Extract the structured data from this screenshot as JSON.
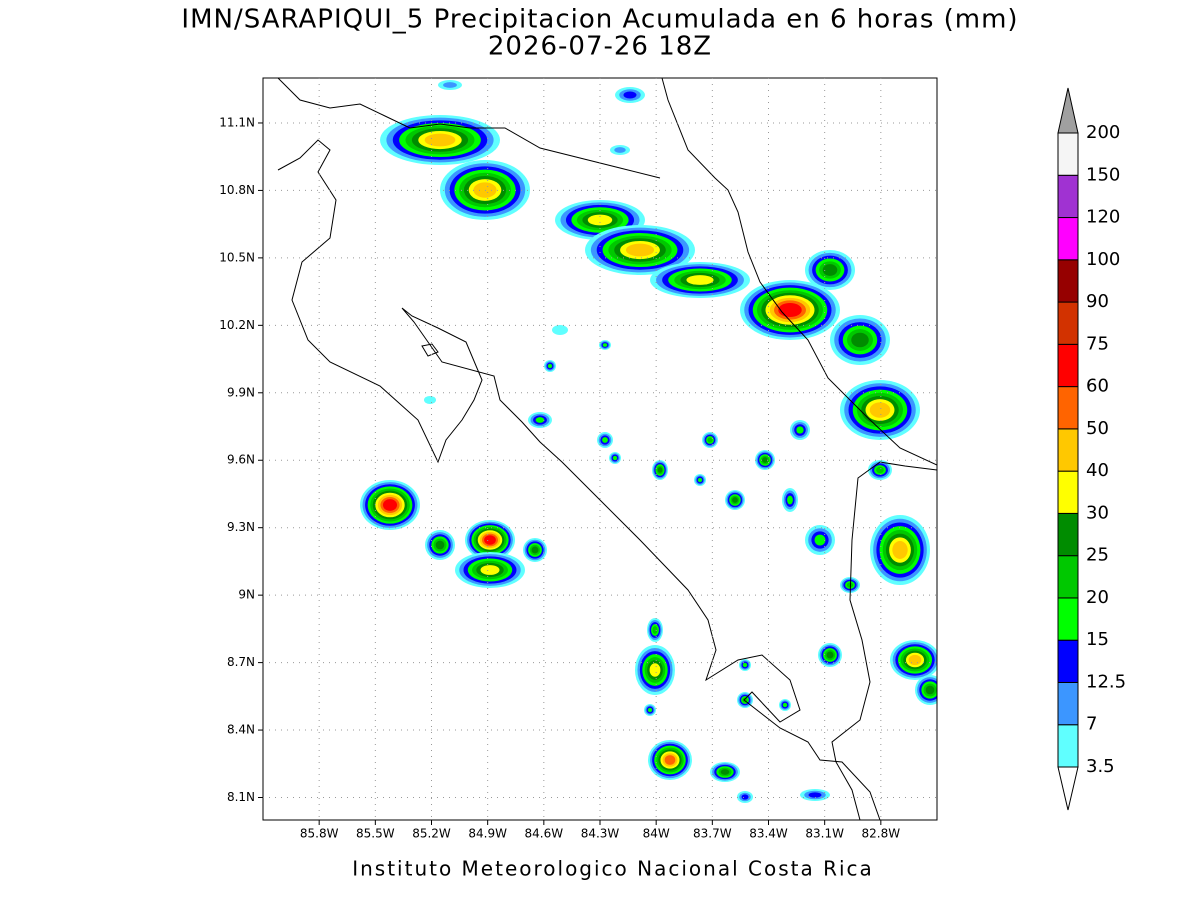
{
  "map": {
    "title": "IMN/SARAPIQUI_5 Precipitacion Acumulada en 6 horas (mm)",
    "subtitle": "2026-07-26 18Z",
    "footer": "Instituto Meteorologico Nacional Costa Rica",
    "xlim": [
      -86.1,
      -82.5
    ],
    "ylim": [
      8.0,
      11.3
    ],
    "xticks": [
      {
        "value": -85.8,
        "label": "85.8W"
      },
      {
        "value": -85.5,
        "label": "85.5W"
      },
      {
        "value": -85.2,
        "label": "85.2W"
      },
      {
        "value": -84.9,
        "label": "84.9W"
      },
      {
        "value": -84.6,
        "label": "84.6W"
      },
      {
        "value": -84.3,
        "label": "84.3W"
      },
      {
        "value": -84,
        "label": "84W"
      },
      {
        "value": -83.7,
        "label": "83.7W"
      },
      {
        "value": -83.4,
        "label": "83.4W"
      },
      {
        "value": -83.1,
        "label": "83.1W"
      },
      {
        "value": -82.8,
        "label": "82.8W"
      }
    ],
    "yticks": [
      {
        "value": 8.1,
        "label": "8.1N"
      },
      {
        "value": 8.4,
        "label": "8.4N"
      },
      {
        "value": 8.7,
        "label": "8.7N"
      },
      {
        "value": 9,
        "label": "9N"
      },
      {
        "value": 9.3,
        "label": "9.3N"
      },
      {
        "value": 9.6,
        "label": "9.6N"
      },
      {
        "value": 9.9,
        "label": "9.9N"
      },
      {
        "value": 10.2,
        "label": "10.2N"
      },
      {
        "value": 10.5,
        "label": "10.5N"
      },
      {
        "value": 10.8,
        "label": "10.8N"
      },
      {
        "value": 11.1,
        "label": "11.1N"
      }
    ],
    "grid": true,
    "colorbar": {
      "levels": [
        3.5,
        7,
        12.5,
        15,
        20,
        25,
        30,
        40,
        50,
        60,
        75,
        90,
        100,
        120,
        150,
        200
      ],
      "colors": [
        "#60ffff",
        "#3c96ff",
        "#0000ff",
        "#00ff00",
        "#00c800",
        "#008c00",
        "#ffff00",
        "#ffc800",
        "#ff6400",
        "#ff0000",
        "#d23200",
        "#960000",
        "#ff00ff",
        "#a032d2",
        "#f5f5f5"
      ],
      "under_color": "#ffffff",
      "over_color": "#a0a0a0"
    }
  }
}
